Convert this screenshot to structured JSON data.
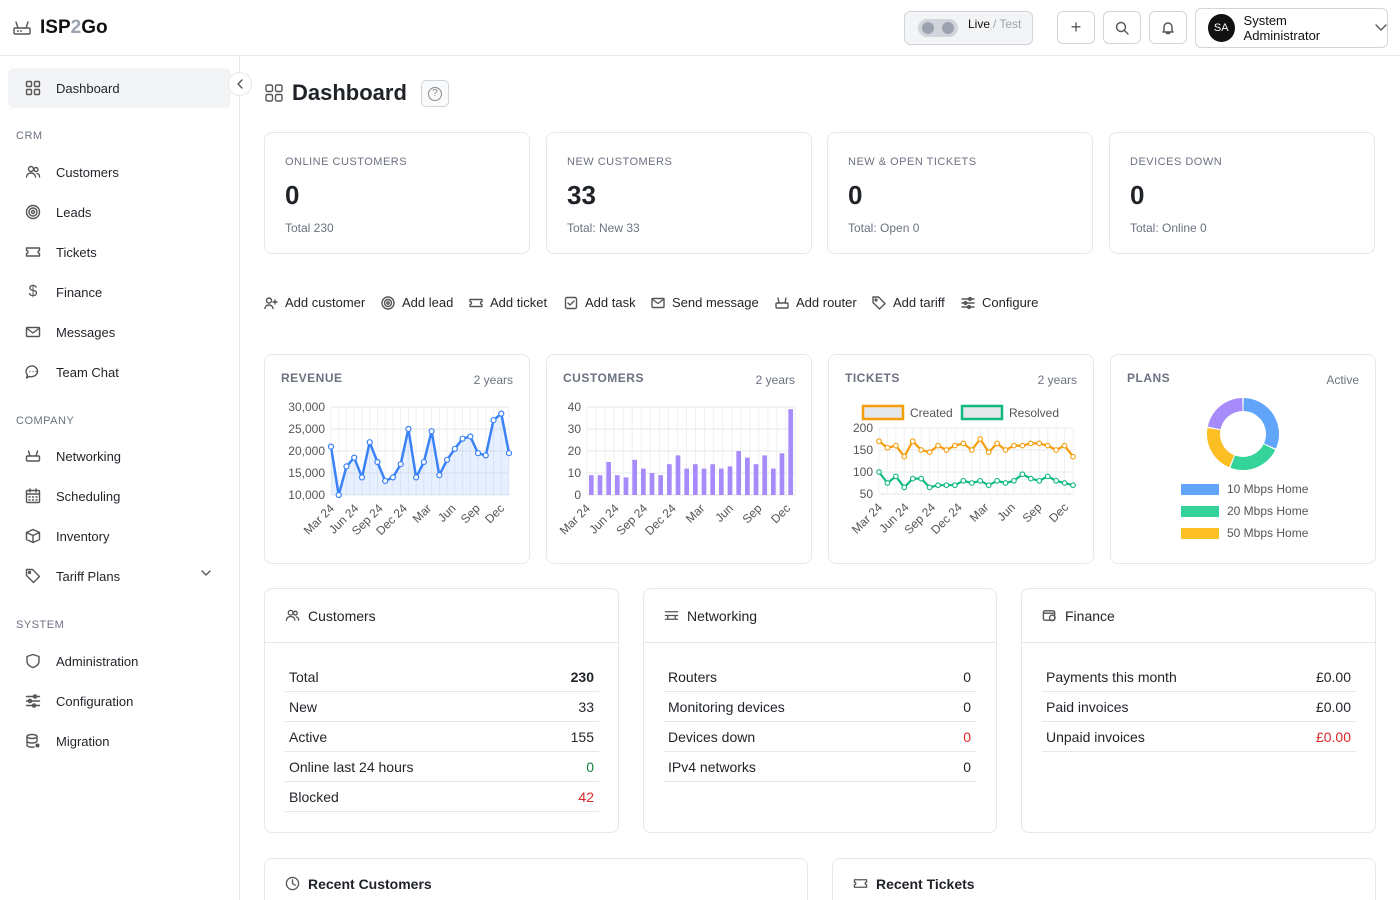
{
  "app": {
    "name_left": "ISP",
    "name_mid": "2",
    "name_right": "Go"
  },
  "header": {
    "mode_live": "Live",
    "mode_sep": "/",
    "mode_test": "Test",
    "add_button": "+",
    "user_initials": "SA",
    "user_name": "System Administrator"
  },
  "sidebar": {
    "top": {
      "label": "Dashboard"
    },
    "sections": [
      {
        "title": "CRM",
        "items": [
          "Customers",
          "Leads",
          "Tickets",
          "Finance",
          "Messages",
          "Team Chat"
        ]
      },
      {
        "title": "COMPANY",
        "items": [
          "Networking",
          "Scheduling",
          "Inventory",
          "Tariff Plans"
        ]
      },
      {
        "title": "SYSTEM",
        "items": [
          "Administration",
          "Configuration",
          "Migration"
        ]
      }
    ]
  },
  "page": {
    "title": "Dashboard",
    "help": "?"
  },
  "stats": [
    {
      "label": "ONLINE CUSTOMERS",
      "value": "0",
      "sub": "Total 230"
    },
    {
      "label": "NEW CUSTOMERS",
      "value": "33",
      "sub": "Total: New 33"
    },
    {
      "label": "NEW & OPEN TICKETS",
      "value": "0",
      "sub": "Total: Open 0"
    },
    {
      "label": "DEVICES DOWN",
      "value": "0",
      "sub": "Total: Online 0"
    }
  ],
  "quick_actions": [
    "Add customer",
    "Add lead",
    "Add ticket",
    "Add task",
    "Send message",
    "Add router",
    "Add tariff",
    "Configure"
  ],
  "chart_data": [
    {
      "type": "area",
      "title": "REVENUE",
      "range": "2 years",
      "ylim": [
        10000,
        30000
      ],
      "yticks": [
        "30,000",
        "25,000",
        "20,000",
        "15,000",
        "10,000"
      ],
      "xticks": [
        "Mar 24",
        "Jun 24",
        "Sep 24",
        "Dec 24",
        "Mar",
        "Jun",
        "Sep",
        "Dec"
      ],
      "values": [
        21000,
        10000,
        16500,
        18500,
        14000,
        22000,
        17500,
        13200,
        14000,
        17000,
        25000,
        14000,
        17500,
        24500,
        14500,
        18000,
        20500,
        22800,
        23300,
        19500,
        19000,
        27000,
        28500,
        19500
      ],
      "color": "#3b82f6"
    },
    {
      "type": "bar",
      "title": "CUSTOMERS",
      "range": "2 years",
      "ylim": [
        0,
        40
      ],
      "yticks": [
        "40",
        "30",
        "20",
        "10",
        "0"
      ],
      "xticks": [
        "Mar 24",
        "Jun 24",
        "Sep 24",
        "Dec 24",
        "Mar",
        "Jun",
        "Sep",
        "Dec"
      ],
      "values": [
        9,
        9,
        15,
        9,
        8,
        16,
        12,
        10,
        9,
        14,
        18,
        12,
        14,
        12,
        14,
        12,
        13,
        20,
        17,
        14,
        18,
        12,
        19,
        39
      ],
      "color": "#a78bfa"
    },
    {
      "type": "line",
      "title": "TICKETS",
      "range": "2 years",
      "ylim": [
        50,
        200
      ],
      "yticks": [
        "200",
        "150",
        "100",
        "50"
      ],
      "xticks": [
        "Mar 24",
        "Jun 24",
        "Sep 24",
        "Dec 24",
        "Mar",
        "Jun",
        "Sep",
        "Dec"
      ],
      "series": [
        {
          "name": "Created",
          "color": "#f59e0b",
          "values": [
            170,
            155,
            160,
            135,
            170,
            150,
            145,
            160,
            150,
            160,
            165,
            150,
            175,
            145,
            165,
            150,
            160,
            160,
            165,
            165,
            160,
            150,
            160,
            135
          ]
        },
        {
          "name": "Resolved",
          "color": "#10b981",
          "values": [
            100,
            75,
            90,
            65,
            85,
            85,
            65,
            70,
            70,
            70,
            80,
            75,
            80,
            70,
            80,
            75,
            80,
            95,
            85,
            80,
            90,
            80,
            75,
            70
          ]
        }
      ]
    },
    {
      "type": "pie",
      "title": "PLANS",
      "range": "Active",
      "series": [
        {
          "name": "10 Mbps Home",
          "value": 32,
          "color": "#60a5fa"
        },
        {
          "name": "20 Mbps Home",
          "value": 24,
          "color": "#34d399"
        },
        {
          "name": "50 Mbps Home",
          "value": 22,
          "color": "#fbbf24"
        },
        {
          "name": "",
          "value": 22,
          "color": "#a78bfa"
        }
      ]
    }
  ],
  "panels": {
    "customers": {
      "title": "Customers",
      "rows": [
        {
          "k": "Total",
          "v": "230",
          "style": "bold"
        },
        {
          "k": "New",
          "v": "33",
          "style": ""
        },
        {
          "k": "Active",
          "v": "155",
          "style": ""
        },
        {
          "k": "Online last 24 hours",
          "v": "0",
          "style": "green"
        },
        {
          "k": "Blocked",
          "v": "42",
          "style": "red"
        }
      ]
    },
    "networking": {
      "title": "Networking",
      "rows": [
        {
          "k": "Routers",
          "v": "0",
          "style": ""
        },
        {
          "k": "Monitoring devices",
          "v": "0",
          "style": ""
        },
        {
          "k": "Devices down",
          "v": "0",
          "style": "red"
        },
        {
          "k": "IPv4 networks",
          "v": "0",
          "style": ""
        }
      ]
    },
    "finance": {
      "title": "Finance",
      "rows": [
        {
          "k": "Payments this month",
          "v": "£0.00",
          "style": ""
        },
        {
          "k": "Paid invoices",
          "v": "£0.00",
          "style": ""
        },
        {
          "k": "Unpaid invoices",
          "v": "£0.00",
          "style": "red"
        }
      ]
    }
  },
  "recent": {
    "customers": "Recent Customers",
    "tickets": "Recent Tickets"
  }
}
